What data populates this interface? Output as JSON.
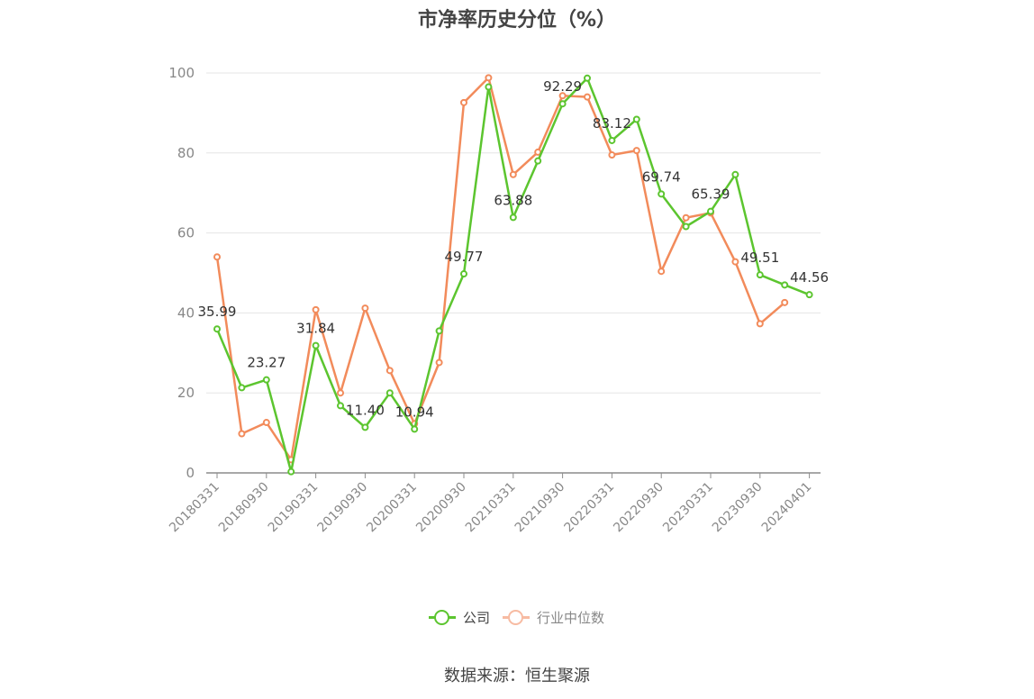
{
  "title": "市净率历史分位（%）",
  "source": "数据来源：恒生聚源",
  "colors": {
    "company": "#5cc52f",
    "industry": "#f28b5b",
    "industry_legend": "#f7bba2",
    "grid": "#e5e5e5",
    "axis": "#8c8c8c",
    "text": "#444444",
    "tick_text": "#888888"
  },
  "legend": [
    {
      "key": "company",
      "label": "公司"
    },
    {
      "key": "industry",
      "label": "行业中位数"
    }
  ],
  "chart_data": {
    "type": "line",
    "title": "市净率历史分位（%）",
    "xlabel": "",
    "ylabel": "",
    "ylim": [
      0,
      100
    ],
    "yticks": [
      0,
      20,
      40,
      60,
      80,
      100
    ],
    "grid": true,
    "legend_position": "bottom",
    "x": [
      "20180331",
      "20180630",
      "20180930",
      "20181231",
      "20190331",
      "20190630",
      "20190930",
      "20191231",
      "20200331",
      "20200630",
      "20200930",
      "20201231",
      "20210331",
      "20210630",
      "20210930",
      "20211231",
      "20220331",
      "20220630",
      "20220930",
      "20221231",
      "20230331",
      "20230630",
      "20230930",
      "20231231",
      "20240401"
    ],
    "xtick_labels": [
      "20180331",
      "20180930",
      "20190331",
      "20190930",
      "20200331",
      "20200930",
      "20210331",
      "20210930",
      "20220331",
      "20220930",
      "20230331",
      "20230930",
      "20240401"
    ],
    "series": [
      {
        "name": "公司",
        "key": "company",
        "values": [
          35.99,
          21.3,
          23.27,
          0.3,
          31.84,
          16.8,
          11.4,
          20.0,
          10.94,
          35.5,
          49.77,
          96.5,
          63.88,
          78.0,
          92.29,
          98.7,
          83.12,
          88.4,
          69.74,
          61.6,
          65.39,
          74.6,
          49.51,
          47.0,
          44.56
        ],
        "labels": [
          "35.99",
          null,
          "23.27",
          null,
          "31.84",
          null,
          "11.40",
          null,
          "10.94",
          null,
          "49.77",
          null,
          "63.88",
          null,
          "92.29",
          null,
          "83.12",
          null,
          "69.74",
          null,
          "65.39",
          null,
          "49.51",
          null,
          "44.56"
        ]
      },
      {
        "name": "行业中位数",
        "key": "industry",
        "values": [
          54.0,
          9.8,
          12.6,
          3.3,
          40.8,
          20.0,
          41.2,
          25.6,
          12.3,
          27.6,
          92.6,
          98.8,
          74.6,
          80.2,
          94.3,
          94.0,
          79.5,
          80.6,
          50.4,
          63.8,
          65.0,
          52.8,
          37.3,
          42.6,
          null
        ]
      }
    ]
  }
}
